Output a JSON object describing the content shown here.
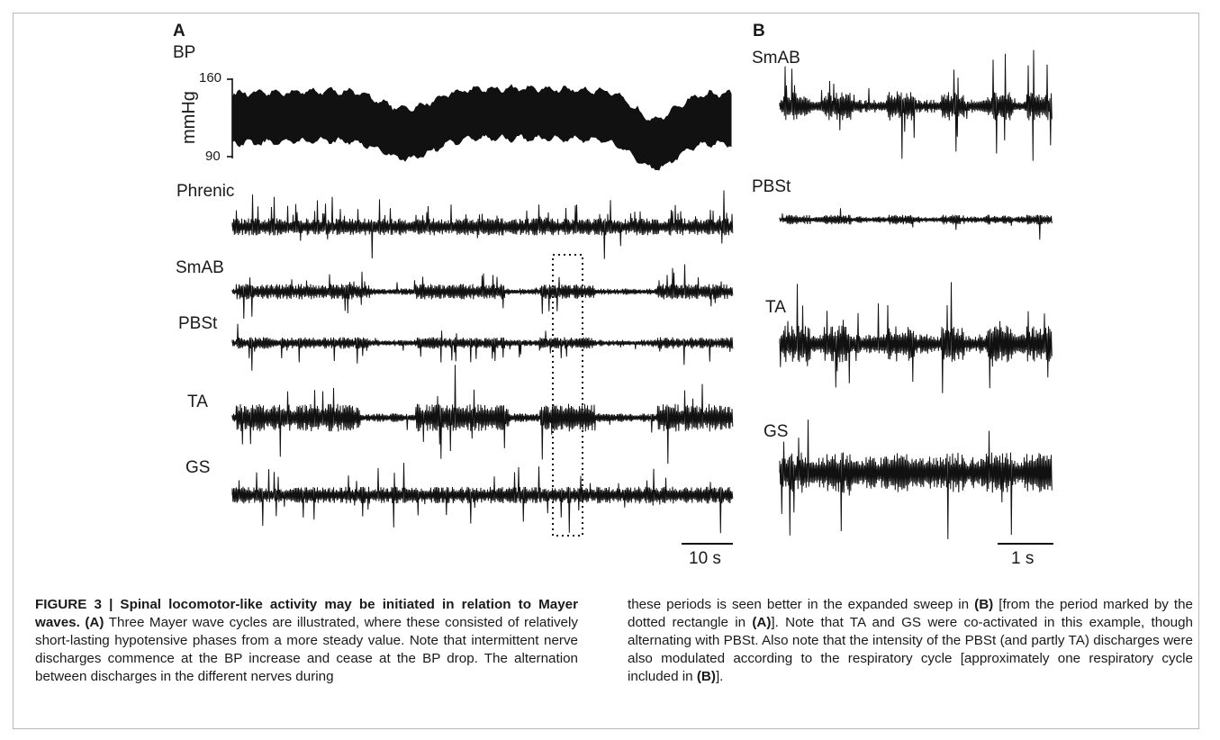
{
  "panels": {
    "a": "A",
    "b": "B"
  },
  "traces_a": [
    {
      "key": "bp",
      "label": "BP"
    },
    {
      "key": "phrenic",
      "label": "Phrenic"
    },
    {
      "key": "smab",
      "label": "SmAB"
    },
    {
      "key": "pbst",
      "label": "PBSt"
    },
    {
      "key": "ta",
      "label": "TA"
    },
    {
      "key": "gs",
      "label": "GS"
    }
  ],
  "traces_b": [
    {
      "key": "smab",
      "label": "SmAB"
    },
    {
      "key": "pbst",
      "label": "PBSt"
    },
    {
      "key": "ta",
      "label": "TA"
    },
    {
      "key": "gs",
      "label": "GS"
    }
  ],
  "bp_axis": {
    "unit": "mmHg",
    "tick_high": "160",
    "tick_low": "90",
    "range": [
      90,
      160
    ]
  },
  "scale_a": "10 s",
  "scale_b": "1 s",
  "caption": {
    "label": "FIGURE 3 | Spinal locomotor-like activity may be initiated in relation to Mayer waves.",
    "ref_a": "(A)",
    "left_text": "Three Mayer wave cycles are illustrated, where these consisted of relatively short-lasting hypotensive phases from a more steady value. Note that intermittent nerve discharges commence at the BP increase and cease at the BP drop. The alternation between discharges in the different nerves during",
    "right_1": "these periods is seen better in the expanded sweep in",
    "ref_b1": "(B)",
    "right_2": "[from the period marked by the dotted rectangle in",
    "ref_a2": "(A)",
    "right_3": "]. Note that TA and GS were co-activated in this example, though alternating with PBSt. Also note that the intensity of the PBSt (and partly TA) discharges were also modulated according to the respiratory cycle [approximately one respiratory cycle included in",
    "ref_b2": "(B)",
    "right_4": "]."
  },
  "colors": {
    "trace": "#111111",
    "frame": "#b9b9b9"
  }
}
